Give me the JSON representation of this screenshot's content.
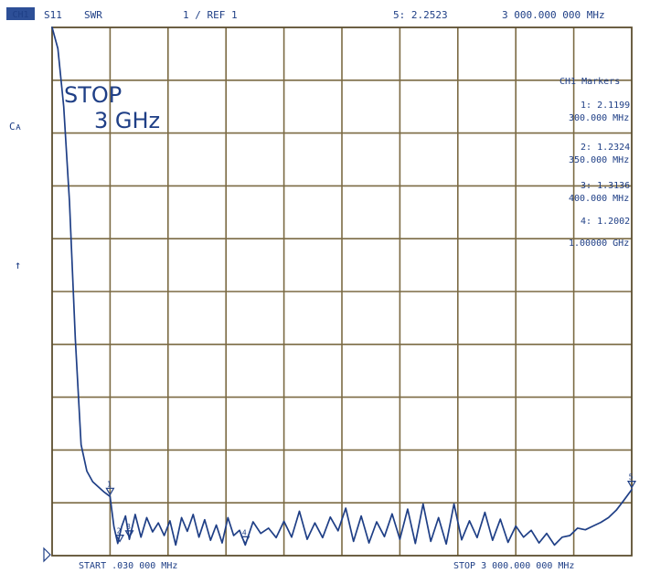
{
  "header": {
    "channel_badge": "CH1",
    "parameter": "S11",
    "format": "SWR",
    "scale_ref": "1  / REF 1",
    "marker_readout": "5: 2.2523",
    "marker_frequency": "3 000.000 000 MHz"
  },
  "left_labels": {
    "ca": "Cᴀ",
    "arrow": "↑"
  },
  "overlay": {
    "stop_label": "STOP",
    "stop_value": "3 GHz"
  },
  "markers_panel": {
    "title": "CH1 Markers",
    "markers": [
      {
        "id": "1",
        "value": "2.1199",
        "frequency": "300.000 MHz"
      },
      {
        "id": "2",
        "value": "1.2324",
        "frequency": "350.000 MHz"
      },
      {
        "id": "3",
        "value": "1.3136",
        "frequency": "400.000 MHz"
      },
      {
        "id": "4",
        "value": "1.2002",
        "frequency": "1.00000 GHz"
      }
    ]
  },
  "footer": {
    "start": "START .030 000 MHz",
    "stop": "STOP 3 000.000 000 MHz"
  },
  "chart_data": {
    "type": "line",
    "xlabel": "",
    "ylabel": "",
    "xlim": [
      0.03,
      3000
    ],
    "ylim": [
      1,
      11
    ],
    "xunit": "MHz",
    "grid": true,
    "legend": "none",
    "series": [
      {
        "values_x": [
          0.03,
          30,
          60,
          90,
          120,
          150,
          180,
          210,
          240,
          270,
          300,
          320,
          340,
          360,
          380,
          400,
          430,
          460,
          490,
          520,
          550,
          580,
          610,
          640,
          670,
          700,
          730,
          760,
          790,
          820,
          850,
          880,
          910,
          940,
          970,
          1000,
          1040,
          1080,
          1120,
          1160,
          1200,
          1240,
          1280,
          1320,
          1360,
          1400,
          1440,
          1480,
          1520,
          1560,
          1600,
          1640,
          1680,
          1720,
          1760,
          1800,
          1840,
          1880,
          1920,
          1960,
          2000,
          2040,
          2080,
          2120,
          2160,
          2200,
          2240,
          2280,
          2320,
          2360,
          2400,
          2440,
          2480,
          2520,
          2560,
          2600,
          2640,
          2680,
          2720,
          2760,
          2800,
          2840,
          2880,
          2920,
          2960,
          3000
        ],
        "values_y": [
          11.0,
          10.6,
          9.5,
          7.7,
          5.1,
          3.1,
          2.6,
          2.4,
          2.3,
          2.2,
          2.12,
          1.55,
          1.23,
          1.55,
          1.75,
          1.31,
          1.78,
          1.35,
          1.72,
          1.45,
          1.62,
          1.38,
          1.66,
          1.2,
          1.72,
          1.46,
          1.78,
          1.35,
          1.68,
          1.29,
          1.58,
          1.24,
          1.72,
          1.38,
          1.48,
          1.2,
          1.64,
          1.42,
          1.52,
          1.34,
          1.65,
          1.35,
          1.84,
          1.31,
          1.62,
          1.34,
          1.73,
          1.47,
          1.9,
          1.27,
          1.75,
          1.24,
          1.64,
          1.36,
          1.79,
          1.31,
          1.88,
          1.23,
          1.98,
          1.27,
          1.72,
          1.22,
          1.98,
          1.3,
          1.66,
          1.34,
          1.82,
          1.29,
          1.69,
          1.25,
          1.56,
          1.35,
          1.48,
          1.24,
          1.42,
          1.2,
          1.35,
          1.38,
          1.52,
          1.49,
          1.56,
          1.63,
          1.72,
          1.86,
          2.05,
          2.25
        ]
      }
    ],
    "markers": [
      {
        "id": "1",
        "x": 300,
        "y": 2.1199
      },
      {
        "id": "2",
        "x": 350,
        "y": 1.2324
      },
      {
        "id": "3",
        "x": 400,
        "y": 1.3136
      },
      {
        "id": "4",
        "x": 1000,
        "y": 1.2002
      },
      {
        "id": "5",
        "x": 3000,
        "y": 2.2523
      }
    ]
  }
}
